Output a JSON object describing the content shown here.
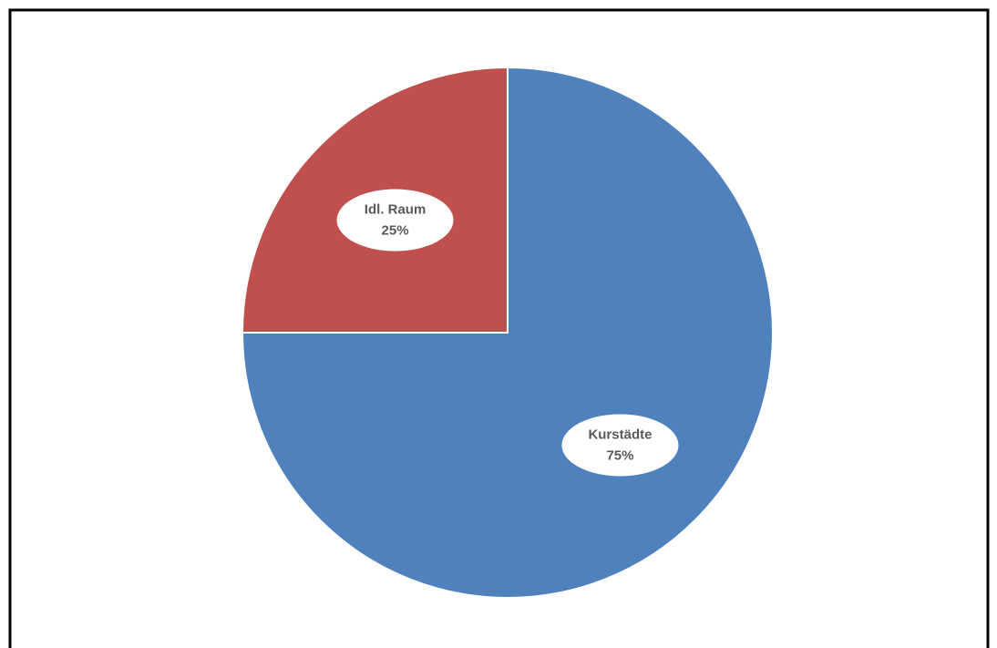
{
  "chart_data": {
    "type": "pie",
    "categories": [
      "Kurstädte",
      "Idl. Raum"
    ],
    "values": [
      75,
      25
    ],
    "value_labels": [
      "75%",
      "25%"
    ],
    "colors": [
      "#4f81bd",
      "#c0504d"
    ]
  }
}
